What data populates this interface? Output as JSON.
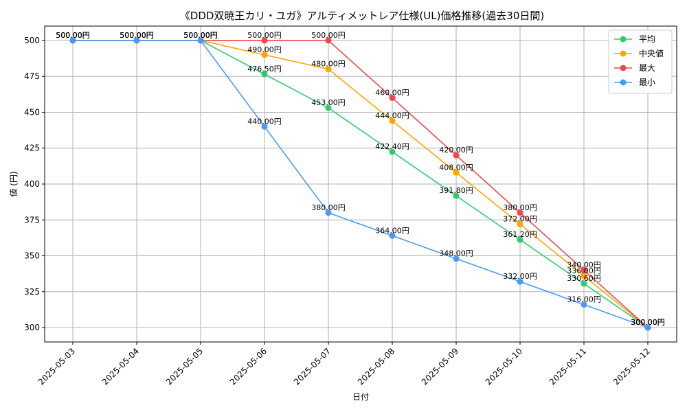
{
  "chart_data": {
    "type": "line",
    "title": "《DDD双暁王カリ・ユガ》アルティメットレア仕様(UL)価格推移(過去30日間)",
    "xlabel": "日付",
    "ylabel": "値 (円)",
    "ylim": [
      290,
      510
    ],
    "yticks": [
      300,
      325,
      350,
      375,
      400,
      425,
      450,
      475,
      500
    ],
    "grid": true,
    "legend_position": "top-right",
    "categories": [
      "2025-05-03",
      "2025-05-04",
      "2025-05-05",
      "2025-05-06",
      "2025-05-07",
      "2025-05-08",
      "2025-05-09",
      "2025-05-10",
      "2025-05-11",
      "2025-05-12"
    ],
    "series": [
      {
        "name": "平均",
        "color": "#2ecc71",
        "values": [
          500.0,
          500.0,
          500.0,
          476.5,
          453.0,
          422.4,
          391.8,
          361.2,
          330.6,
          300.0
        ],
        "labels": [
          "500.00円",
          "500.00円",
          "500.00円",
          "476.50円",
          "453.00円",
          "422.40円",
          "391.80円",
          "361.20円",
          "330.60円",
          "300.00円"
        ]
      },
      {
        "name": "中央値",
        "color": "#ffa500",
        "values": [
          500.0,
          500.0,
          500.0,
          490.0,
          480.0,
          444.0,
          408.0,
          372.0,
          336.0,
          300.0
        ],
        "labels": [
          "500.00円",
          "500.00円",
          "500.00円",
          "490.00円",
          "480.00円",
          "444.00円",
          "408.00円",
          "372.00円",
          "336.00円",
          "300.00円"
        ]
      },
      {
        "name": "最大",
        "color": "#f04848",
        "values": [
          500.0,
          500.0,
          500.0,
          500.0,
          500.0,
          460.0,
          420.0,
          380.0,
          340.0,
          300.0
        ],
        "labels": [
          "500.00円",
          "500.00円",
          "500.00円",
          "500.00円",
          "500.00円",
          "460.00円",
          "420.00円",
          "380.00円",
          "340.00円",
          "300.00円"
        ]
      },
      {
        "name": "最小",
        "color": "#4a9af5",
        "values": [
          500.0,
          500.0,
          500.0,
          440.0,
          380.0,
          364.0,
          348.0,
          332.0,
          316.0,
          300.0
        ],
        "labels": [
          "500.00円",
          "500.00円",
          "500.00円",
          "440.00円",
          "380.00円",
          "364.00円",
          "348.00円",
          "332.00円",
          "316.00円",
          "300.00円"
        ]
      }
    ]
  }
}
